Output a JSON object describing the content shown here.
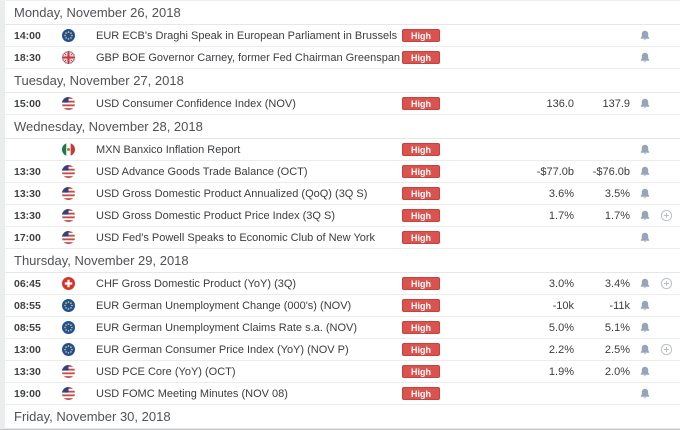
{
  "colors": {
    "badge_bg": "#d9534f",
    "badge_border": "#c9403c",
    "bell_icon": "#97a5b8",
    "plus_icon": "#bdc2c6",
    "header_text": "#4f5256",
    "row_text": "#3a3d40",
    "row_border": "#ececec"
  },
  "importance_label": "High",
  "sections": [
    {
      "date_label": "Monday, November 26, 2018",
      "events": [
        {
          "time": "14:00",
          "flag": "eur",
          "title": "EUR ECB's Draghi Speak in European Parliament in Brussels",
          "importance": "High",
          "forecast": "",
          "previous": "",
          "bell": true,
          "plus": false
        },
        {
          "time": "18:30",
          "flag": "gbp",
          "title": "GBP BOE Governor Carney, former Fed Chairman Greenspan Speak",
          "importance": "High",
          "forecast": "",
          "previous": "",
          "bell": true,
          "plus": false
        }
      ]
    },
    {
      "date_label": "Tuesday, November 27, 2018",
      "events": [
        {
          "time": "15:00",
          "flag": "usd",
          "title": "USD Consumer Confidence Index (NOV)",
          "importance": "High",
          "forecast": "136.0",
          "previous": "137.9",
          "bell": true,
          "plus": false
        }
      ]
    },
    {
      "date_label": "Wednesday, November 28, 2018",
      "events": [
        {
          "time": "",
          "flag": "mxn",
          "title": "MXN Banxico Inflation Report",
          "importance": "High",
          "forecast": "",
          "previous": "",
          "bell": true,
          "plus": false
        },
        {
          "time": "13:30",
          "flag": "usd",
          "title": "USD Advance Goods Trade Balance (OCT)",
          "importance": "High",
          "forecast": "-$77.0b",
          "previous": "-$76.0b",
          "bell": true,
          "plus": false
        },
        {
          "time": "13:30",
          "flag": "usd",
          "title": "USD Gross Domestic Product Annualized (QoQ) (3Q S)",
          "importance": "High",
          "forecast": "3.6%",
          "previous": "3.5%",
          "bell": true,
          "plus": false
        },
        {
          "time": "13:30",
          "flag": "usd",
          "title": "USD Gross Domestic Product Price Index (3Q S)",
          "importance": "High",
          "forecast": "1.7%",
          "previous": "1.7%",
          "bell": true,
          "plus": true
        },
        {
          "time": "17:00",
          "flag": "usd",
          "title": "USD Fed's Powell Speaks to Economic Club of New York",
          "importance": "High",
          "forecast": "",
          "previous": "",
          "bell": true,
          "plus": false
        }
      ]
    },
    {
      "date_label": "Thursday, November 29, 2018",
      "events": [
        {
          "time": "06:45",
          "flag": "chf",
          "title": "CHF Gross Domestic Product (YoY) (3Q)",
          "importance": "High",
          "forecast": "3.0%",
          "previous": "3.4%",
          "bell": true,
          "plus": true
        },
        {
          "time": "08:55",
          "flag": "eur",
          "title": "EUR German Unemployment Change (000's) (NOV)",
          "importance": "High",
          "forecast": "-10k",
          "previous": "-11k",
          "bell": true,
          "plus": false
        },
        {
          "time": "08:55",
          "flag": "eur",
          "title": "EUR German Unemployment Claims Rate s.a. (NOV)",
          "importance": "High",
          "forecast": "5.0%",
          "previous": "5.1%",
          "bell": true,
          "plus": false
        },
        {
          "time": "13:00",
          "flag": "eur",
          "title": "EUR German Consumer Price Index (YoY) (NOV P)",
          "importance": "High",
          "forecast": "2.2%",
          "previous": "2.5%",
          "bell": true,
          "plus": true
        },
        {
          "time": "13:30",
          "flag": "usd",
          "title": "USD PCE Core (YoY) (OCT)",
          "importance": "High",
          "forecast": "1.9%",
          "previous": "2.0%",
          "bell": true,
          "plus": false
        },
        {
          "time": "19:00",
          "flag": "usd",
          "title": "USD FOMC Meeting Minutes (NOV 08)",
          "importance": "High",
          "forecast": "",
          "previous": "",
          "bell": true,
          "plus": false
        }
      ]
    },
    {
      "date_label": "Friday, November 30, 2018",
      "events": []
    }
  ]
}
